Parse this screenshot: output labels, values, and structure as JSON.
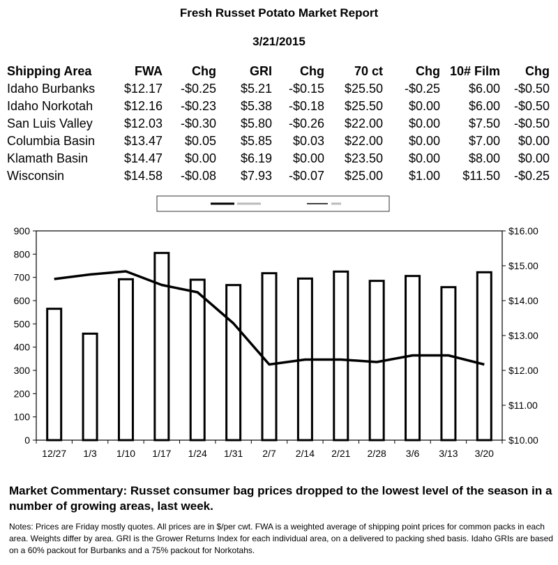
{
  "title": "Fresh Russet Potato Market Report",
  "date": "3/21/2015",
  "table": {
    "headers": [
      "Shipping Area",
      "FWA",
      "Chg",
      "GRI",
      "Chg",
      "70 ct",
      "Chg",
      "10# Film",
      "Chg"
    ],
    "rows": [
      [
        "Idaho Burbanks",
        "$12.17",
        "-$0.25",
        "$5.21",
        "-$0.15",
        "$25.50",
        "-$0.25",
        "$6.00",
        "-$0.50"
      ],
      [
        "Idaho Norkotah",
        "$12.16",
        "-$0.23",
        "$5.38",
        "-$0.18",
        "$25.50",
        "$0.00",
        "$6.00",
        "-$0.50"
      ],
      [
        "San Luis Valley",
        "$12.03",
        "-$0.30",
        "$5.80",
        "-$0.26",
        "$22.00",
        "$0.00",
        "$7.50",
        "-$0.50"
      ],
      [
        "Columbia Basin",
        "$13.47",
        "$0.05",
        "$5.85",
        "$0.03",
        "$22.00",
        "$0.00",
        "$7.00",
        "$0.00"
      ],
      [
        "Klamath Basin",
        "$14.47",
        "$0.00",
        "$6.19",
        "$0.00",
        "$23.50",
        "$0.00",
        "$8.00",
        "$0.00"
      ],
      [
        "Wisconsin",
        "$14.58",
        "-$0.08",
        "$7.93",
        "-$0.07",
        "$25.00",
        "$1.00",
        "$11.50",
        "-$0.25"
      ]
    ]
  },
  "chart_data": {
    "type": "bar",
    "categories": [
      "12/27",
      "1/3",
      "1/10",
      "1/17",
      "1/24",
      "1/31",
      "2/7",
      "2/14",
      "2/21",
      "2/28",
      "3/6",
      "3/13",
      "3/20"
    ],
    "series": [
      {
        "type": "bar",
        "axis": "left",
        "values": [
          565,
          458,
          692,
          805,
          690,
          667,
          718,
          695,
          725,
          685,
          706,
          658,
          722
        ]
      },
      {
        "type": "line",
        "axis": "right",
        "values": [
          14.62,
          14.75,
          14.84,
          14.45,
          14.24,
          13.35,
          12.17,
          12.31,
          12.31,
          12.24,
          12.43,
          12.43,
          12.17
        ]
      }
    ],
    "y_left": {
      "min": 0,
      "max": 900,
      "ticks": [
        "900",
        "800",
        "700",
        "600",
        "500",
        "400",
        "300",
        "200",
        "100",
        "0"
      ]
    },
    "y_right": {
      "min": 10,
      "max": 16,
      "ticks": [
        "$16.00",
        "$15.00",
        "$14.00",
        "$13.00",
        "$12.00",
        "$11.00",
        "$10.00"
      ]
    },
    "grid": false,
    "legend": "top"
  },
  "commentary": "Market Commentary: Russet consumer bag prices dropped to the lowest level of the season in a number of growing areas, last week.",
  "notes": "Notes: Prices are Friday mostly quotes. All prices are in $/per cwt. FWA is a weighted average of shipping point prices for  common packs in each area. Weights differ by area. GRI is the Grower Returns Index for each individual area, on a delivered to packing shed basis. Idaho GRIs are based on a 60% packout for Burbanks and a 75% packout for Norkotahs."
}
